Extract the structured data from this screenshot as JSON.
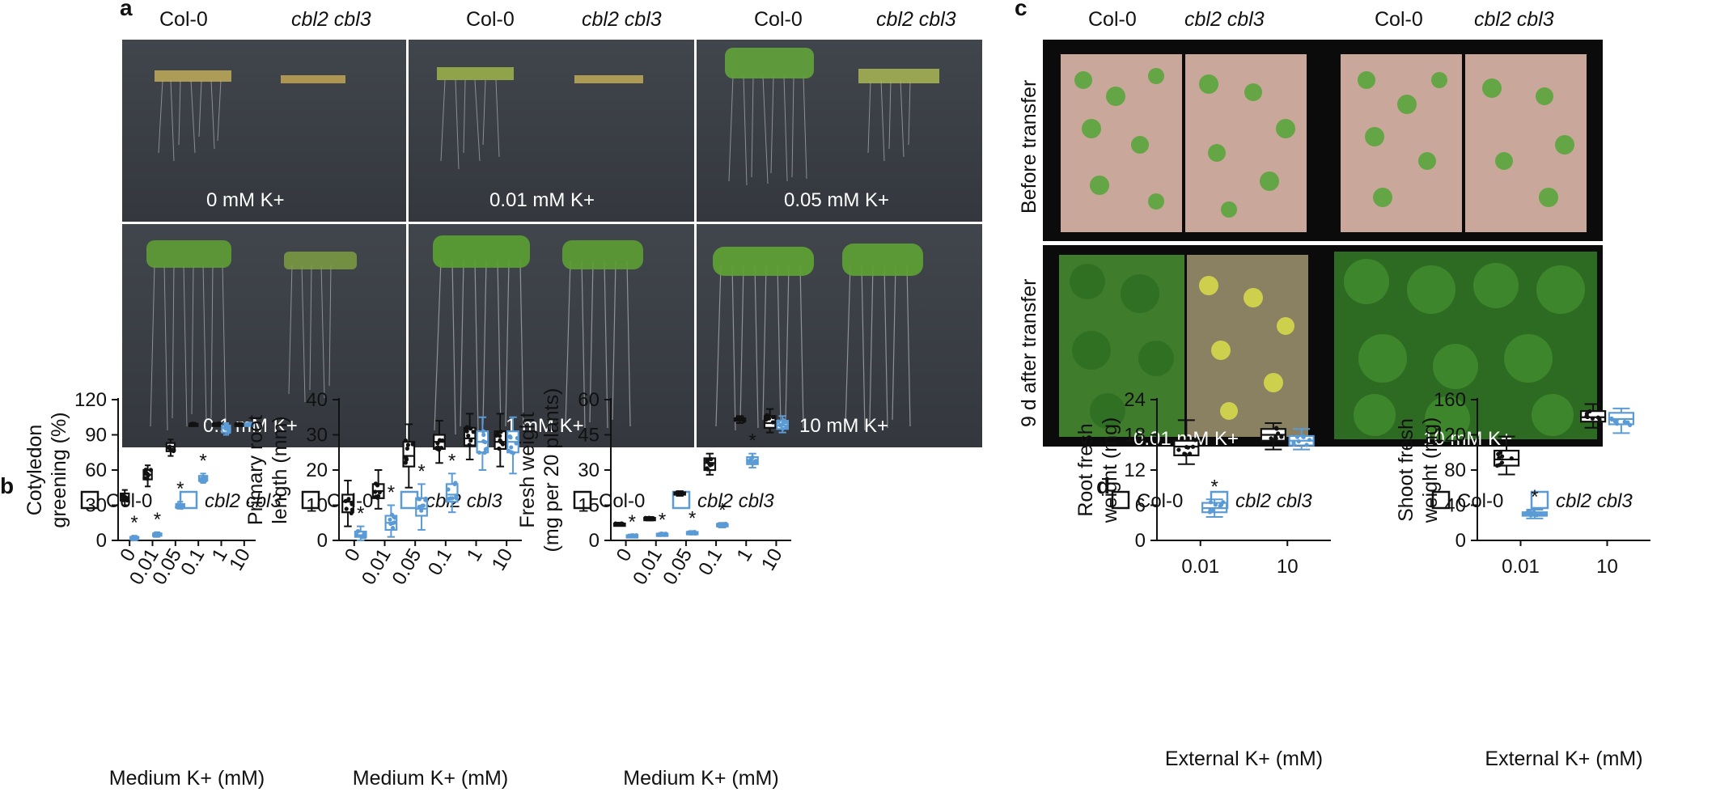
{
  "panel_a": {
    "letter": "a",
    "header": [
      "Col-0",
      "cbl2 cbl3",
      "Col-0",
      "cbl2 cbl3",
      "Col-0",
      "cbl2 cbl3"
    ],
    "photos": [
      "0 mM K+",
      "0.01 mM K+",
      "0.05 mM K+",
      "0.1 mM K+",
      "1 mM K+",
      "10 mM K+"
    ]
  },
  "panel_c": {
    "letter": "c",
    "header": [
      "Col-0",
      "cbl2 cbl3",
      "Col-0",
      "cbl2 cbl3"
    ],
    "rows": [
      "Before transfer",
      "9 d after transfer"
    ],
    "bottom": [
      "0.01 mM K+",
      "10 mM K+"
    ]
  },
  "panel_b": {
    "letter": "b"
  },
  "panel_d": {
    "letter": "d"
  },
  "colors": {
    "col0": "#111111",
    "mutant": "#5b9bd5"
  },
  "chart_data": [
    {
      "type": "box",
      "panel": "b",
      "legend": [
        "Col-0",
        "cbl2 cbl3"
      ],
      "ylabel": "Cotyledon greening (%)",
      "xlabel": "Medium K+ (mM)",
      "categories": [
        "0",
        "0.01",
        "0.05",
        "0.1",
        "1",
        "10"
      ],
      "yticks": [
        0,
        30,
        60,
        90,
        120
      ],
      "ylim": [
        0,
        120
      ],
      "series": [
        {
          "name": "Col-0",
          "box": [
            [
              30,
              34,
              37,
              40,
              43
            ],
            [
              46,
              52,
              56,
              60,
              64
            ],
            [
              72,
              76,
              80,
              83,
              86
            ],
            [
              98,
              98.5,
              99,
              99.5,
              100
            ],
            [
              98,
              98.5,
              99,
              99.5,
              100
            ],
            [
              98,
              98.5,
              99,
              99.5,
              100
            ]
          ]
        },
        {
          "name": "cbl2 cbl3",
          "box": [
            [
              0,
              1,
              2,
              3,
              4
            ],
            [
              3,
              4,
              5,
              6,
              7
            ],
            [
              27,
              28,
              30,
              31,
              33
            ],
            [
              49,
              51,
              53,
              55,
              57
            ],
            [
              90,
              92,
              96,
              98,
              100
            ],
            [
              98,
              98.5,
              99,
              99.5,
              100
            ]
          ]
        }
      ],
      "significant": [
        true,
        true,
        true,
        true,
        false,
        false
      ]
    },
    {
      "type": "box",
      "panel": "b",
      "legend": [
        "Col-0",
        "cbl2 cbl3"
      ],
      "ylabel": "Primary root length (mm)",
      "xlabel": "Medium K+ (mM)",
      "categories": [
        "0",
        "0.01",
        "0.05",
        "0.1",
        "1",
        "10"
      ],
      "yticks": [
        0,
        10,
        20,
        30,
        40
      ],
      "ylim": [
        0,
        40
      ],
      "series": [
        {
          "name": "Col-0",
          "box": [
            [
              4,
              8,
              11,
              13,
              17
            ],
            [
              9,
              12,
              14,
              16,
              20
            ],
            [
              15,
              21,
              24,
              28,
              33
            ],
            [
              22,
              26,
              28,
              30,
              34
            ],
            [
              23,
              27,
              29,
              32,
              36
            ],
            [
              21,
              26,
              28,
              31,
              36
            ]
          ]
        },
        {
          "name": "cbl2 cbl3",
          "box": [
            [
              0,
              1,
              1.5,
              2.5,
              4
            ],
            [
              1,
              3,
              5,
              7,
              10
            ],
            [
              3,
              7,
              9,
              12,
              16
            ],
            [
              8,
              11,
              13,
              16,
              19
            ],
            [
              20,
              25,
              28,
              31,
              35
            ],
            [
              19,
              25,
              28,
              31,
              35
            ]
          ]
        }
      ],
      "significant": [
        true,
        true,
        true,
        true,
        false,
        false
      ]
    },
    {
      "type": "box",
      "panel": "b",
      "legend": [
        "Col-0",
        "cbl2 cbl3"
      ],
      "ylabel": "Fresh weight (mg per 20 plants)",
      "xlabel": "Medium K+ (mM)",
      "categories": [
        "0",
        "0.01",
        "0.05",
        "0.1",
        "1",
        "10"
      ],
      "yticks": [
        0,
        15,
        30,
        45,
        60
      ],
      "ylim": [
        0,
        60
      ],
      "series": [
        {
          "name": "Col-0",
          "box": [
            [
              6.5,
              6.8,
              7,
              7.2,
              7.5
            ],
            [
              8.5,
              9,
              9.3,
              9.6,
              10
            ],
            [
              19,
              19.6,
              20,
              20.5,
              21
            ],
            [
              28,
              30,
              33,
              35,
              37
            ],
            [
              50,
              51,
              51.5,
              52,
              53
            ],
            [
              46,
              48,
              50,
              53,
              56
            ]
          ]
        },
        {
          "name": "cbl2 cbl3",
          "box": [
            [
              1.5,
              1.8,
              2,
              2.2,
              2.5
            ],
            [
              2,
              2.3,
              2.6,
              2.9,
              3.2
            ],
            [
              2.5,
              3,
              3.3,
              3.6,
              4
            ],
            [
              5.5,
              6,
              6.5,
              7,
              7.5
            ],
            [
              31,
              32.5,
              34,
              35.5,
              37
            ],
            [
              46,
              47.5,
              49,
              51,
              53
            ]
          ]
        }
      ],
      "significant": [
        true,
        true,
        true,
        true,
        true,
        false
      ]
    },
    {
      "type": "box",
      "panel": "d",
      "legend": [
        "Col-0",
        "cbl2 cbl3"
      ],
      "ylabel": "Root fresh weight (mg)",
      "xlabel": "External K+ (mM)",
      "categories": [
        "0.01",
        "10"
      ],
      "yticks": [
        0,
        6,
        12,
        18,
        24
      ],
      "ylim": [
        0,
        24
      ],
      "series": [
        {
          "name": "Col-0",
          "box": [
            [
              13,
              14.5,
              16,
              17,
              20.5
            ],
            [
              15.5,
              17,
              18,
              19,
              20
            ]
          ]
        },
        {
          "name": "cbl2 cbl3",
          "box": [
            [
              4,
              4.8,
              5.5,
              6.4,
              7
            ],
            [
              15.5,
              16.2,
              17,
              17.8,
              19
            ]
          ]
        }
      ],
      "significant": [
        true,
        false
      ]
    },
    {
      "type": "box",
      "panel": "d",
      "legend": [
        "Col-0",
        "cbl2 cbl3"
      ],
      "ylabel": "Shoot fresh weight (mg)",
      "xlabel": "External K+ (mM)",
      "categories": [
        "0.01",
        "10"
      ],
      "yticks": [
        0,
        40,
        80,
        120,
        160
      ],
      "ylim": [
        0,
        160
      ],
      "series": [
        {
          "name": "Col-0",
          "box": [
            [
              75,
              85,
              92,
              102,
              118
            ],
            [
              128,
              135,
              140,
              147,
              155
            ]
          ]
        },
        {
          "name": "cbl2 cbl3",
          "box": [
            [
              25,
              28,
              30,
              32,
              35
            ],
            [
              122,
              132,
              138,
              145,
              150
            ]
          ]
        }
      ],
      "significant": [
        true,
        false
      ]
    }
  ]
}
